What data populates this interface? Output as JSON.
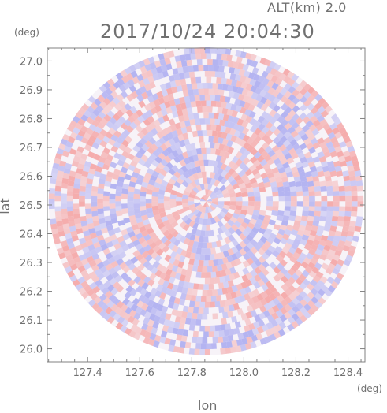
{
  "header": {
    "altitude_label": "ALT(km) 2.0",
    "timestamp": "2017/10/24 20:04:30"
  },
  "chart_data": {
    "type": "heatmap",
    "title": "2017/10/24 20:04:30",
    "subtitle": "ALT(km) 2.0",
    "xlabel": "lon",
    "ylabel": "lat",
    "x_unit": "(deg)",
    "y_unit": "(deg)",
    "xlim": [
      127.245,
      128.465
    ],
    "ylim": [
      25.955,
      27.045
    ],
    "x_ticks": [
      127.4,
      127.6,
      127.8,
      128.0,
      128.2,
      128.4
    ],
    "x_tick_labels": [
      "127.4",
      "127.6",
      "127.8",
      "128.0",
      "128.2",
      "128.4"
    ],
    "y_ticks": [
      27.0,
      26.9,
      26.8,
      26.7,
      26.6,
      26.5,
      26.4,
      26.3,
      26.2,
      26.1,
      26.0
    ],
    "y_tick_labels": [
      "27.0",
      "26.9",
      "26.8",
      "26.7",
      "26.6",
      "26.5",
      "26.4",
      "26.3",
      "26.2",
      "26.1",
      "26.0"
    ],
    "radar_center": {
      "lon": 127.855,
      "lat": 26.513
    },
    "radar_radius_deg": {
      "lon": 0.605,
      "lat": 0.535
    },
    "colors": {
      "positive": "#f4a0a0",
      "negative": "#a8a8f0",
      "axis": "#808080"
    },
    "grid": false
  }
}
